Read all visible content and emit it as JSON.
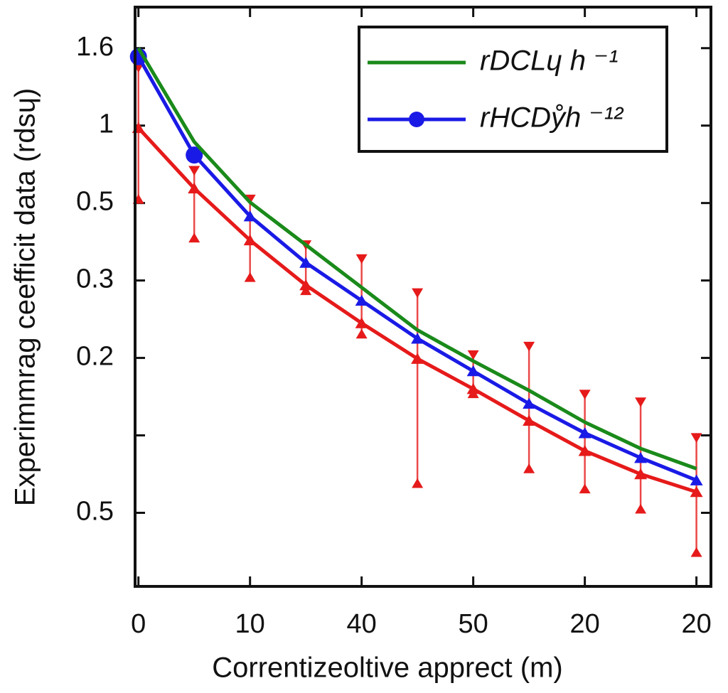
{
  "chart_data": {
    "type": "line",
    "xlabel": "Correntizeoltive apprect (m)",
    "ylabel": "Experimmrag ceefficit data (rdsɥ)",
    "x": [
      0,
      0.5,
      1,
      1.5,
      2,
      2.5,
      3,
      3.5,
      4,
      4.5,
      5
    ],
    "xlim": [
      -0.03,
      5.13
    ],
    "xticks": [
      0,
      {
        "value": 1,
        "label": "10"
      },
      {
        "value": 2,
        "label": "40"
      },
      {
        "value": 3,
        "label": "50"
      },
      {
        "value": 4,
        "label": "20"
      },
      {
        "value": 5,
        "label": "20"
      }
    ],
    "ylim": [
      -0.95,
      6.53
    ],
    "yticks": [
      {
        "value": 0,
        "label": "0.5"
      },
      {
        "value": 1,
        "label": null
      },
      {
        "value": 2,
        "label": "0.2"
      },
      {
        "value": 3,
        "label": "0.3"
      },
      {
        "value": 4,
        "label": "0.5"
      },
      {
        "value": 5,
        "label": "1"
      },
      {
        "value": 6,
        "label": "1.6"
      }
    ],
    "series": [
      {
        "name": "rDCLɥ h ⁻¹",
        "color": "#1a8a1a",
        "marker": "none",
        "values": [
          6.0,
          4.79,
          4.01,
          3.46,
          2.91,
          2.36,
          1.96,
          1.58,
          1.17,
          0.83,
          0.57
        ]
      },
      {
        "name": "rHCDẙh ⁻¹²",
        "color": "#1a1ae6",
        "marker": "circle",
        "markers": [
          "circle",
          "circle",
          "triangle",
          "triangle",
          "triangle",
          "triangle",
          "triangle",
          "triangle",
          "triangle",
          "triangle",
          "triangle"
        ],
        "values": [
          5.89,
          4.62,
          3.83,
          3.23,
          2.74,
          2.25,
          1.83,
          1.41,
          1.03,
          0.71,
          0.42
        ]
      },
      {
        "color": "#e61a1a",
        "marker": "triangle",
        "values": [
          4.97,
          4.19,
          3.52,
          2.94,
          2.45,
          1.99,
          1.6,
          1.19,
          0.8,
          0.5,
          0.27
        ],
        "err_high": [
          0.78,
          0.23,
          0.53,
          0.52,
          0.83,
          0.85,
          0.44,
          0.96,
          0.73,
          0.93,
          0.7
        ],
        "err_low": [
          0.92,
          0.64,
          0.48,
          0.07,
          0.14,
          1.61,
          0.06,
          0.62,
          0.49,
          0.45,
          0.78
        ]
      }
    ]
  }
}
